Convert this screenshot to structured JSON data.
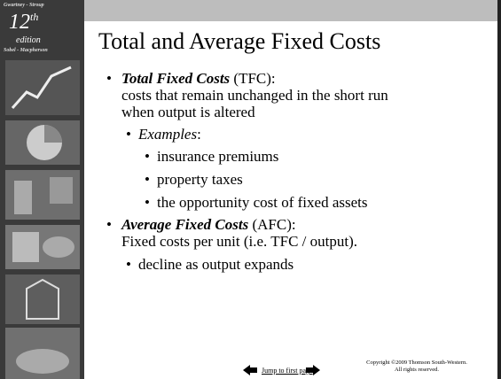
{
  "sidebar": {
    "authors_top": "Gwartney - Stroup",
    "edition_number": "12",
    "edition_suffix": "th",
    "edition_word": "edition",
    "authors_bottom": "Sobel - Macpherson"
  },
  "title": "Total and Average Fixed Costs",
  "bullets": [
    {
      "term": "Total Fixed Costs",
      "abbr": "(TFC):",
      "lines": [
        "costs that remain unchanged in the short run",
        "when output is altered"
      ],
      "sub": {
        "label": "Examples",
        "colon": ":",
        "items": [
          "insurance premiums",
          "property taxes",
          "the opportunity cost of fixed assets"
        ]
      }
    },
    {
      "term": "Average Fixed Costs",
      "abbr": "(AFC):",
      "lines": [
        "Fixed costs per unit (i.e. TFC / output)."
      ],
      "sub": {
        "items": [
          "decline as output expands"
        ]
      }
    }
  ],
  "footer": {
    "link": "Jump to first page",
    "copyright": [
      "Copyright ©2009  Thomson South-Western.",
      "All rights reserved."
    ]
  }
}
